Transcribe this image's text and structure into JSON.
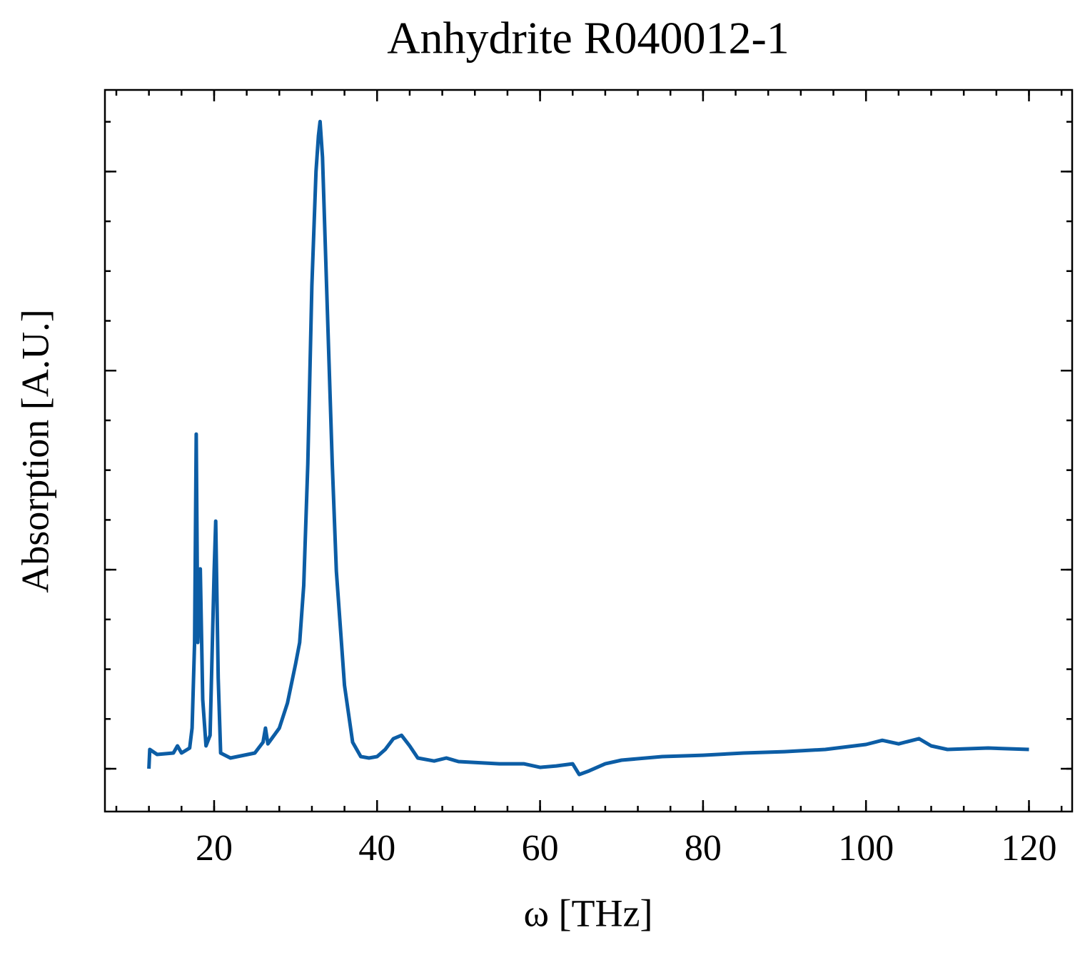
{
  "chart_data": {
    "type": "line",
    "title": "Anhydrite R040012-1",
    "x_label": "ω [THz]",
    "y_label": "Absorption [A.U.]",
    "xlim": [
      6.6,
      125.3
    ],
    "xticks": [
      20,
      40,
      60,
      80,
      100,
      120
    ],
    "ylim": [
      -0.215,
      3.41
    ],
    "yticks": [
      0,
      1,
      2,
      3
    ],
    "series": [
      {
        "name": "Anhydrite R040012-1",
        "color": "#0c5da5",
        "x": [
          12.0,
          12.1,
          13,
          15,
          15.5,
          16,
          17,
          17.3,
          17.6,
          17.8,
          18.0,
          18.3,
          18.6,
          19,
          19.5,
          20.0,
          20.2,
          20.5,
          20.8,
          22,
          25,
          26,
          26.3,
          26.6,
          28,
          29,
          30,
          30.5,
          31,
          31.5,
          32,
          32.5,
          32.8,
          33,
          33.3,
          33.8,
          34.5,
          35,
          36,
          37,
          38,
          39,
          40,
          41,
          42,
          43,
          44,
          45,
          47,
          48.5,
          50,
          55,
          58,
          60,
          62,
          64,
          64.8,
          66,
          68,
          70,
          75,
          80,
          85,
          90,
          95,
          100,
          102,
          104,
          106.5,
          108,
          110,
          115,
          120
        ],
        "values": [
          0,
          0.097,
          0.072,
          0.079,
          0.115,
          0.079,
          0.104,
          0.204,
          0.634,
          1.681,
          0.634,
          1.004,
          0.348,
          0.115,
          0.168,
          0.993,
          1.244,
          0.455,
          0.079,
          0.054,
          0.079,
          0.133,
          0.204,
          0.125,
          0.204,
          0.33,
          0.527,
          0.634,
          0.921,
          1.53,
          2.427,
          3.0,
          3.179,
          3.251,
          3.072,
          2.427,
          1.53,
          0.993,
          0.419,
          0.133,
          0.061,
          0.054,
          0.061,
          0.097,
          0.151,
          0.168,
          0.115,
          0.054,
          0.039,
          0.054,
          0.036,
          0.025,
          0.025,
          0.007,
          0.014,
          0.025,
          -0.029,
          -0.011,
          0.025,
          0.043,
          0.061,
          0.068,
          0.079,
          0.086,
          0.097,
          0.122,
          0.143,
          0.125,
          0.151,
          0.115,
          0.097,
          0.104,
          0.097
        ]
      }
    ]
  }
}
